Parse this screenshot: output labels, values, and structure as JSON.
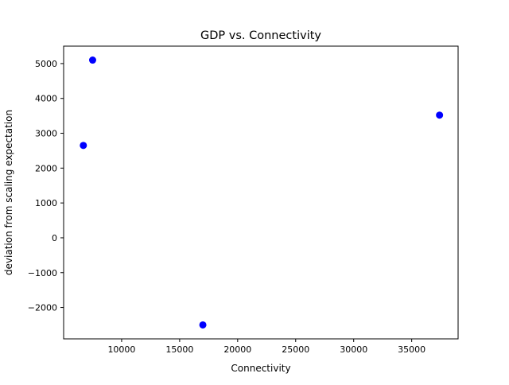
{
  "chart_data": {
    "type": "scatter",
    "title": "GDP vs. Connectivity",
    "xlabel": "Connectivity",
    "ylabel": "deviation from scaling expectation",
    "xlim": [
      5000,
      39000
    ],
    "ylim": [
      -2900,
      5500
    ],
    "xticks": [
      10000,
      15000,
      20000,
      25000,
      30000,
      35000
    ],
    "xtick_labels": [
      "10000",
      "15000",
      "20000",
      "25000",
      "30000",
      "35000"
    ],
    "yticks": [
      -2000,
      -1000,
      0,
      1000,
      2000,
      3000,
      4000,
      5000
    ],
    "ytick_labels": [
      "−2000",
      "−1000",
      "0",
      "1000",
      "2000",
      "3000",
      "4000",
      "5000"
    ],
    "grid": false,
    "series": [
      {
        "color": "#0000ff",
        "points": [
          {
            "x": 6700,
            "y": 2650
          },
          {
            "x": 7500,
            "y": 5100
          },
          {
            "x": 17000,
            "y": -2500
          },
          {
            "x": 37400,
            "y": 3520
          }
        ]
      }
    ]
  }
}
